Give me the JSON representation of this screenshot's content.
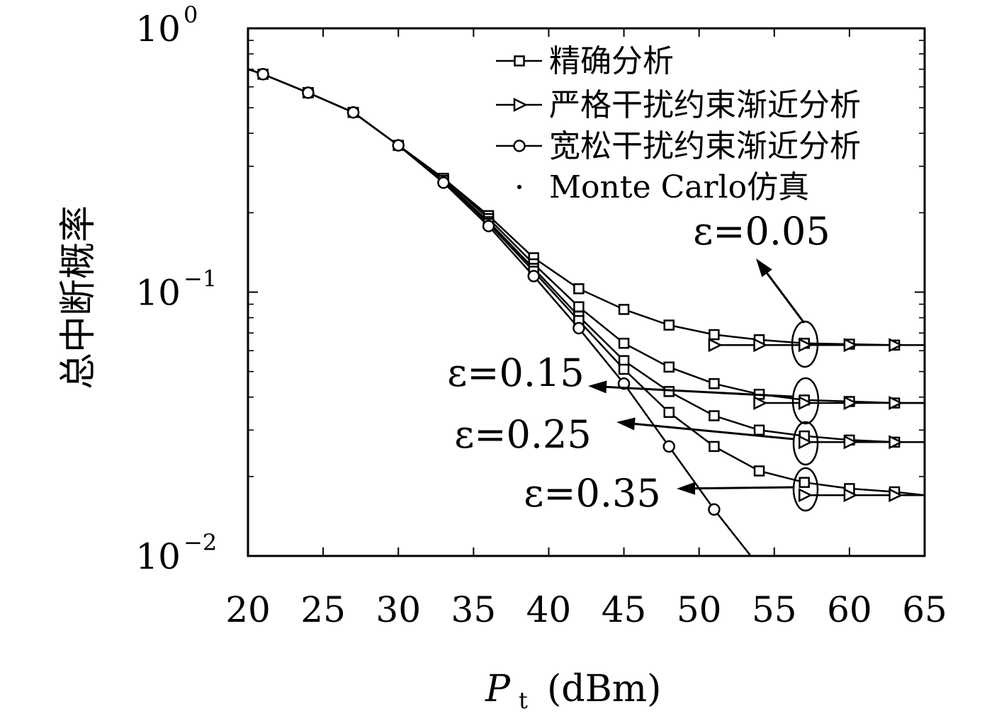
{
  "chart_data": {
    "type": "line",
    "title": "",
    "xlabel": "P",
    "xlabel_sub": "t",
    "xlabel_unit": "(dBm)",
    "ylabel": "总中断概率",
    "xlim": [
      20,
      65
    ],
    "ylim": [
      0.01,
      1
    ],
    "yscale": "log",
    "grid": false,
    "legend_position": "top-right",
    "x_ticks": [
      20,
      25,
      30,
      35,
      40,
      45,
      50,
      55,
      60,
      65
    ],
    "x_tick_labels": [
      "20",
      "25",
      "30",
      "35",
      "40",
      "45",
      "50",
      "55",
      "60",
      "65"
    ],
    "y_ticks": [
      1,
      0.1,
      0.01
    ],
    "y_tick_bases": [
      "10",
      "10",
      "10"
    ],
    "y_tick_exps": [
      "0",
      "−1",
      "−2"
    ],
    "legend": [
      {
        "label": "精确分析",
        "marker": "square"
      },
      {
        "label": "严格干扰约束渐近分析",
        "marker": "triangle-right"
      },
      {
        "label": "宽松干扰约束渐近分析",
        "marker": "circle"
      },
      {
        "label": "Monte Carlo仿真",
        "marker": "dot"
      }
    ],
    "annotations": [
      {
        "text": "ε=0.05",
        "group": 0
      },
      {
        "text": "ε=0.15",
        "group": 1
      },
      {
        "text": "ε=0.25",
        "group": 2
      },
      {
        "text": "ε=0.35",
        "group": 3
      }
    ],
    "series": [
      {
        "marker": "square",
        "epsilon": "0.05",
        "x": [
          20,
          21,
          24,
          27,
          30,
          33,
          36,
          39,
          42,
          45,
          48,
          51,
          54,
          57,
          60,
          63,
          65
        ],
        "y": [
          0.7,
          0.67,
          0.57,
          0.48,
          0.36,
          0.27,
          0.195,
          0.135,
          0.103,
          0.086,
          0.075,
          0.069,
          0.066,
          0.064,
          0.0635,
          0.063,
          0.063
        ]
      },
      {
        "marker": "square",
        "epsilon": "0.15",
        "x": [
          20,
          21,
          24,
          27,
          30,
          33,
          36,
          39,
          42,
          45,
          48,
          51,
          54,
          57,
          60,
          63,
          65
        ],
        "y": [
          0.7,
          0.67,
          0.57,
          0.48,
          0.36,
          0.27,
          0.19,
          0.128,
          0.088,
          0.064,
          0.052,
          0.045,
          0.041,
          0.039,
          0.0385,
          0.038,
          0.038
        ]
      },
      {
        "marker": "square",
        "epsilon": "0.25",
        "x": [
          20,
          21,
          24,
          27,
          30,
          33,
          36,
          39,
          42,
          45,
          48,
          51,
          54,
          57,
          60,
          63,
          65
        ],
        "y": [
          0.7,
          0.67,
          0.57,
          0.48,
          0.36,
          0.265,
          0.185,
          0.123,
          0.081,
          0.055,
          0.042,
          0.034,
          0.03,
          0.0285,
          0.0275,
          0.027,
          0.027
        ]
      },
      {
        "marker": "square",
        "epsilon": "0.35",
        "x": [
          20,
          21,
          24,
          27,
          30,
          33,
          36,
          39,
          42,
          45,
          48,
          51,
          54,
          57,
          60,
          63,
          65
        ],
        "y": [
          0.7,
          0.67,
          0.57,
          0.48,
          0.36,
          0.265,
          0.182,
          0.12,
          0.078,
          0.051,
          0.035,
          0.026,
          0.021,
          0.019,
          0.018,
          0.0175,
          0.017
        ]
      },
      {
        "marker": "triangle-right",
        "epsilon": "0.05",
        "x": [
          51,
          54,
          57,
          60,
          63,
          65
        ],
        "y": [
          0.063,
          0.063,
          0.063,
          0.063,
          0.063,
          0.063
        ]
      },
      {
        "marker": "triangle-right",
        "epsilon": "0.15",
        "x": [
          54,
          57,
          60,
          63,
          65
        ],
        "y": [
          0.038,
          0.038,
          0.038,
          0.038,
          0.038
        ]
      },
      {
        "marker": "triangle-right",
        "epsilon": "0.25",
        "x": [
          57,
          60,
          63,
          65
        ],
        "y": [
          0.027,
          0.027,
          0.027,
          0.027
        ]
      },
      {
        "marker": "triangle-right",
        "epsilon": "0.35",
        "x": [
          57,
          60,
          63,
          65
        ],
        "y": [
          0.017,
          0.017,
          0.017,
          0.017
        ]
      },
      {
        "marker": "circle",
        "x": [
          20,
          21,
          24,
          27,
          30,
          33,
          36,
          39,
          42,
          45,
          48,
          51,
          53.5
        ],
        "y": [
          0.7,
          0.67,
          0.57,
          0.48,
          0.36,
          0.26,
          0.178,
          0.115,
          0.073,
          0.045,
          0.026,
          0.015,
          0.0099
        ]
      }
    ]
  }
}
